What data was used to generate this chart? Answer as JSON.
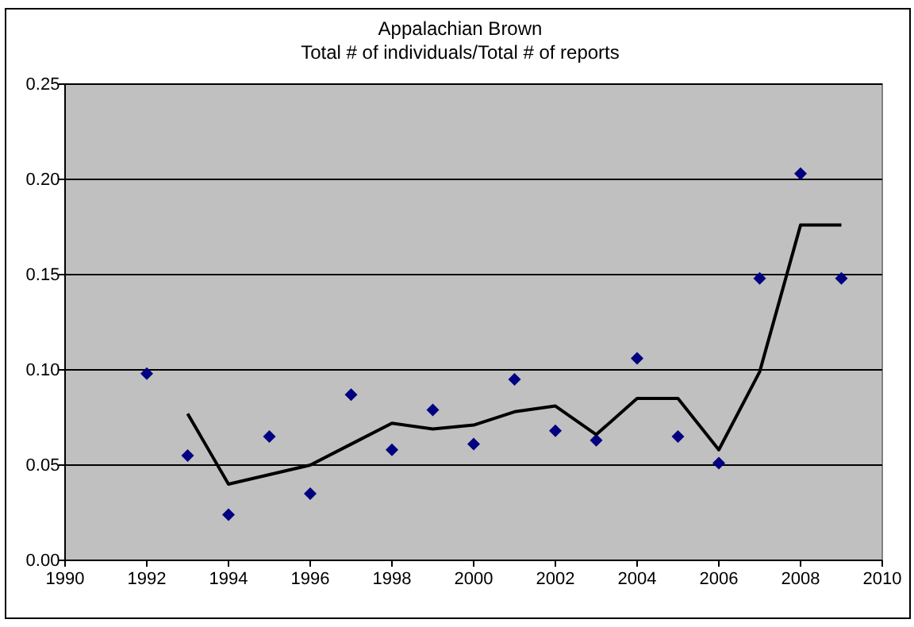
{
  "chart_data": {
    "type": "scatter",
    "title": "Appalachian Brown",
    "subtitle": "Total # of individuals/Total # of reports",
    "xlim": [
      1990,
      2010
    ],
    "xticks": [
      1990,
      1992,
      1994,
      1996,
      1998,
      2000,
      2002,
      2004,
      2006,
      2008,
      2010
    ],
    "ylim": [
      0,
      0.25
    ],
    "yticks": [
      {
        "value": 0,
        "label": "0.00"
      },
      {
        "value": 0.05,
        "label": "0.05"
      },
      {
        "value": 0.1,
        "label": "0.10"
      },
      {
        "value": 0.15,
        "label": "0.15"
      },
      {
        "value": 0.2,
        "label": "0.20"
      },
      {
        "value": 0.25,
        "label": "0.25"
      }
    ],
    "grid": "y",
    "series": [
      {
        "color": "#000080",
        "marker": "diamond",
        "x": [
          1992,
          1993,
          1994,
          1995,
          1996,
          1997,
          1998,
          1999,
          2000,
          2001,
          2002,
          2003,
          2004,
          2005,
          2006,
          2007,
          2008,
          2009
        ],
        "values": [
          0.098,
          0.055,
          0.024,
          0.065,
          0.035,
          0.087,
          0.058,
          0.079,
          0.061,
          0.095,
          0.068,
          0.063,
          0.106,
          0.065,
          0.051,
          0.148,
          0.203,
          0.148
        ]
      },
      {
        "type": "line",
        "color": "#000000",
        "line_style": "solid",
        "x": [
          1993,
          1994,
          1995,
          1996,
          1997,
          1998,
          1999,
          2000,
          2001,
          2002,
          2003,
          2004,
          2005,
          2006,
          2007,
          2008,
          2009
        ],
        "values": [
          0.077,
          0.04,
          0.045,
          0.05,
          0.061,
          0.072,
          0.069,
          0.071,
          0.078,
          0.081,
          0.066,
          0.085,
          0.085,
          0.058,
          0.099,
          0.176,
          0.176
        ]
      }
    ]
  }
}
